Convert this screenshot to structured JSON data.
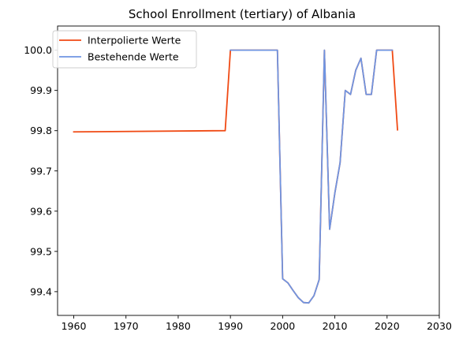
{
  "chart_data": {
    "type": "line",
    "title": "School Enrollment (tertiary) of Albania",
    "xlabel": "",
    "ylabel": "",
    "xlim": [
      1956.9,
      2030
    ],
    "ylim": [
      99.341,
      100.06
    ],
    "xticks": [
      1960,
      1970,
      1980,
      1990,
      2000,
      2010,
      2020,
      2030
    ],
    "yticks": [
      99.4,
      99.5,
      99.6,
      99.7,
      99.8,
      99.9,
      100.0
    ],
    "ytick_labels": [
      "99.4",
      "99.5",
      "99.6",
      "99.7",
      "99.8",
      "99.9",
      "100.0"
    ],
    "grid": false,
    "legend_position": "top-left",
    "series": [
      {
        "name": "Interpolierte Werte",
        "color": "#f04a14",
        "x": [
          1960,
          1989,
          1990,
          1999,
          2000,
          2001,
          2002,
          2003,
          2004,
          2005,
          2006,
          2007,
          2008,
          2009,
          2010,
          2011,
          2012,
          2013,
          2014,
          2015,
          2016,
          2017,
          2018,
          2019,
          2020,
          2021,
          2022
        ],
        "y": [
          99.797,
          99.8,
          100.0,
          100.0,
          99.432,
          99.422,
          99.403,
          99.385,
          99.373,
          99.372,
          99.39,
          99.43,
          100.0,
          99.555,
          99.645,
          99.72,
          99.9,
          99.89,
          99.95,
          99.98,
          99.89,
          99.89,
          100.0,
          100.0,
          100.0,
          100.0,
          99.802
        ]
      },
      {
        "name": "Bestehende Werte",
        "color": "#6f95e2",
        "x": [
          1990,
          1999,
          2000,
          2001,
          2002,
          2003,
          2004,
          2005,
          2006,
          2007,
          2008,
          2009,
          2010,
          2011,
          2012,
          2013,
          2014,
          2015,
          2016,
          2017,
          2018,
          2019,
          2020,
          2021
        ],
        "y": [
          100.0,
          100.0,
          99.432,
          99.422,
          99.403,
          99.385,
          99.373,
          99.372,
          99.39,
          99.43,
          100.0,
          99.555,
          99.645,
          99.72,
          99.9,
          99.89,
          99.95,
          99.98,
          99.89,
          99.89,
          100.0,
          100.0,
          100.0,
          100.0
        ]
      }
    ]
  }
}
